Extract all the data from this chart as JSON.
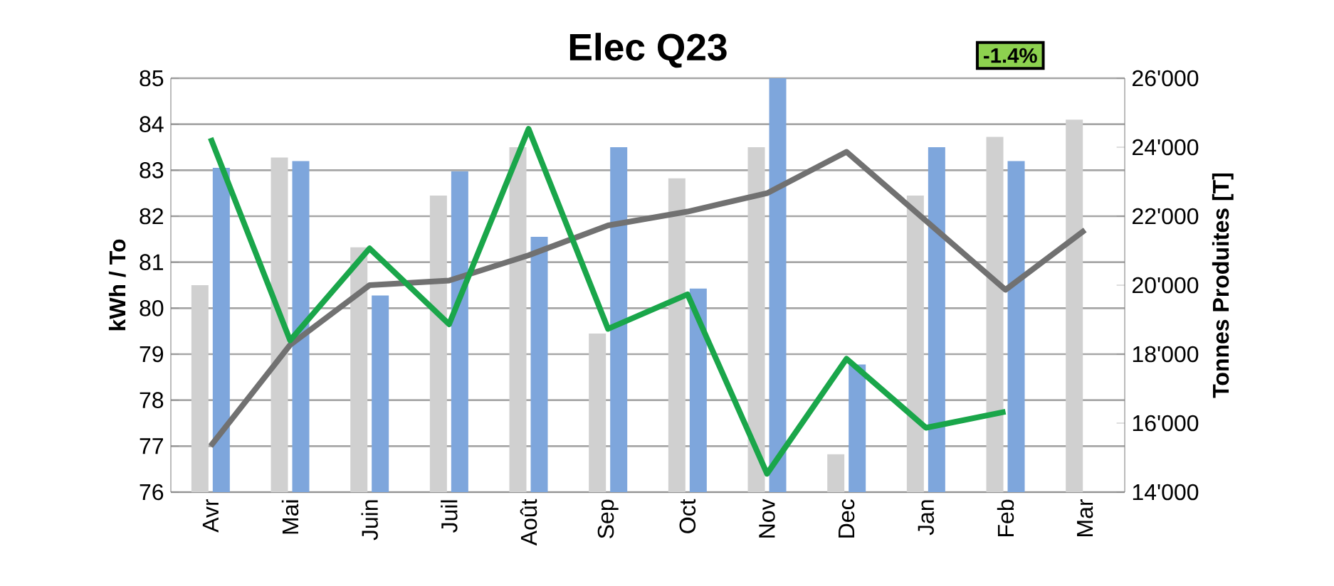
{
  "chart_data": {
    "type": "bar",
    "title": "Elec Q23",
    "categories": [
      "Avr",
      "Mai",
      "Juin",
      "Juil",
      "Août",
      "Sep",
      "Oct",
      "Nov",
      "Dec",
      "Jan",
      "Feb",
      "Mar"
    ],
    "series": [
      {
        "axis": "y2",
        "color": "#d0d0d0",
        "values": [
          20000,
          23700,
          21100,
          22600,
          24000,
          18600,
          23100,
          24000,
          15100,
          22600,
          24300,
          24800
        ]
      },
      {
        "axis": "y2",
        "color": "#7ea6dc",
        "values": [
          23400,
          23600,
          19700,
          23300,
          21400,
          24000,
          19900,
          26000,
          17700,
          24000,
          23600,
          null
        ]
      },
      {
        "type": "line",
        "axis": "y",
        "color": "#717171",
        "values": [
          77.0,
          79.2,
          80.5,
          80.6,
          81.15,
          81.8,
          82.1,
          82.5,
          83.4,
          81.9,
          80.4,
          81.7
        ]
      },
      {
        "type": "line",
        "axis": "y",
        "color": "#1aa64a",
        "values": [
          83.7,
          79.3,
          81.3,
          79.65,
          83.9,
          79.55,
          80.3,
          76.4,
          78.9,
          77.4,
          77.75,
          null
        ]
      }
    ],
    "ylim": [
      76,
      85
    ],
    "yticks": [
      76,
      77,
      78,
      79,
      80,
      81,
      82,
      83,
      84,
      85
    ],
    "y2lim": [
      14000,
      26000
    ],
    "y2ticks": [
      {
        "value": 14000,
        "label": "14'000"
      },
      {
        "value": 16000,
        "label": "16'000"
      },
      {
        "value": 18000,
        "label": "18'000"
      },
      {
        "value": 20000,
        "label": "20'000"
      },
      {
        "value": 22000,
        "label": "22'000"
      },
      {
        "value": 24000,
        "label": "24'000"
      },
      {
        "value": 26000,
        "label": "26'000"
      }
    ],
    "ylabel": "kWh / To",
    "y2label": "Tonnes Produites [T]",
    "annotations": [
      "-1.4%"
    ],
    "grid": "y"
  }
}
